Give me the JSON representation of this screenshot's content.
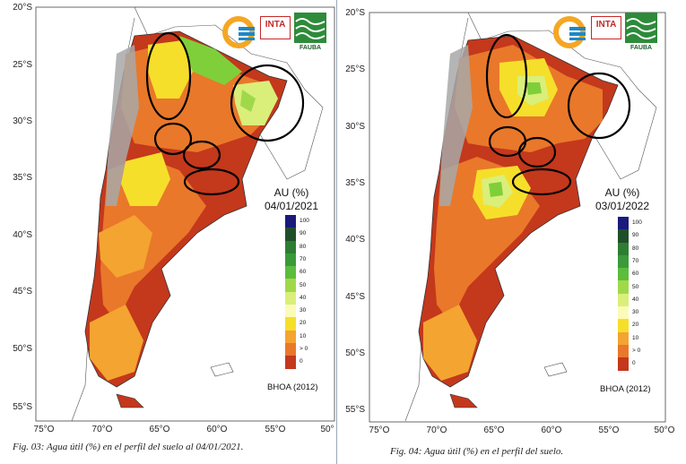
{
  "maps": [
    {
      "id": "fig03",
      "legend_title": "AU (%)",
      "legend_date": "04/01/2021",
      "source": "BHOA (2012)",
      "caption": "Fig. 03: Agua útil (%) en el perfil del suelo al 04/01/2021.",
      "latitudes": [
        "20°S",
        "25°S",
        "30°S",
        "35°S",
        "40°S",
        "45°S",
        "50°S",
        "55°S"
      ],
      "longitudes": [
        "75°O",
        "70°O",
        "65°O",
        "60°O",
        "55°O",
        "50°"
      ]
    },
    {
      "id": "fig04",
      "legend_title": "AU (%)",
      "legend_date": "03/01/2022",
      "source": "BHOA (2012)",
      "caption": "Fig. 04: Agua útil (%) en el perfil del suelo.",
      "latitudes": [
        "20°S",
        "25°S",
        "30°S",
        "35°S",
        "40°S",
        "45°S",
        "50°S",
        "55°S"
      ],
      "longitudes": [
        "75°O",
        "70°O",
        "65°O",
        "60°O",
        "55°O",
        "50°O"
      ]
    }
  ],
  "legend_classes": [
    {
      "label": "100",
      "color": "#1a1a7a"
    },
    {
      "label": "90",
      "color": "#1f4f2a"
    },
    {
      "label": "80",
      "color": "#2e7d32"
    },
    {
      "label": "70",
      "color": "#3a9a3a"
    },
    {
      "label": "60",
      "color": "#5cbc3c"
    },
    {
      "label": "50",
      "color": "#9fd94a"
    },
    {
      "label": "40",
      "color": "#d9ef7a"
    },
    {
      "label": "30",
      "color": "#fbfbb8"
    },
    {
      "label": "20",
      "color": "#f6df2a"
    },
    {
      "label": "10",
      "color": "#f4a430"
    },
    {
      "label": "> 0",
      "color": "#e9782a"
    },
    {
      "label": "0",
      "color": "#c4381c"
    }
  ],
  "logos": {
    "inta": "INTA",
    "fauba": "FAUBA"
  },
  "colors": {
    "dry": "#c4381c",
    "low": "#e9782a",
    "mid": "#f4a430",
    "yellow": "#f6df2a",
    "green": "#7fcf3a",
    "andes": "#a8a8a8"
  }
}
